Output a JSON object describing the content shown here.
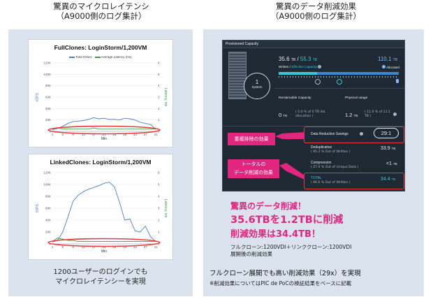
{
  "left": {
    "title_line1": "驚異のマイクロレイテンシ",
    "title_line2": "（A9000側のログ集計）",
    "chart1_title": "FullClones: LoginStorm/1,200VM",
    "chart2_title": "LinkedClones: LoginStorm/1,200VM",
    "legend_total": "Total IO/sec",
    "legend_latency": "Average Latency (ms)",
    "caption_line1": "1200ユーザーのログインでも",
    "caption_line2": "マイクロレイテンシーを実現"
  },
  "right": {
    "title_line1": "驚異のデータ削減効果",
    "title_line2": "（A9000側のログ集計）",
    "dashboard": {
      "header": "Provisioned Capacity",
      "system_count": "1",
      "system_label": "System",
      "written_value": "35.6",
      "written_unit": "TB",
      "slash": "/",
      "effective_value": "55.3",
      "effective_unit": "TB",
      "written_label": "Written",
      "effective_label": "Effective Capacity",
      "allocated_value": "110.1",
      "allocated_unit": "TB",
      "allocated_label": "Allocated",
      "reclaimable_label": "Reclaimable Capacity",
      "reclaimable_value": "0",
      "reclaimable_unit": "TB",
      "reclaimable_note1": "( 0.0 % of 0 TB Vol.",
      "reclaimable_note2": "allocation )",
      "physical_label": "Physical usage",
      "physical_value": "1.2",
      "physical_unit": "TB",
      "physical_note1": "( 11.0 % of 11.1",
      "physical_note2": "TB )",
      "savings_label": "Data Reduction Savings",
      "savings_ratio": "29:1",
      "dedup_label": "Deduplication",
      "dedup_note": "( 95.3 % Out of Written )",
      "dedup_value": "33.9",
      "dedup_unit": "TB",
      "comp_label": "Compression",
      "comp_note": "( 27.4 % Out of Unique Data )",
      "comp_value": "<1",
      "comp_unit": "TB",
      "total_label": "TOTAL",
      "total_note": "( 96.6 % Out of Written )",
      "total_value": "34.4",
      "total_unit": "TB"
    },
    "box1": "重複排除の効果",
    "box2_line1": "トータルの",
    "box2_line2": "データ削減の効果",
    "headline1": "驚異のデータ削減！",
    "headline2": "35.6TBを1.2TBに削減",
    "headline3": "削減効果は34.4TB！",
    "sub1": "フルクローン:1200VDI＋リンククローン:1200VDI",
    "sub2": "展開後の削減効果",
    "caption": "フルクローン展開でも高い削減効果（29x）を実現",
    "footnote": "※削減効果についてはPIC de PoCの検証結果をベースに記載"
  },
  "charts": {
    "x_ticks": [
      "1",
      "5",
      "9",
      "13",
      "17",
      "21",
      "25",
      "29",
      "33",
      "37",
      "41"
    ],
    "x_label": "Min",
    "y_left_label": "IOPS",
    "y_right_label": "Latency, ms",
    "y_left_ticks": [
      "0",
      "20K",
      "40K",
      "60K",
      "80K",
      "100K",
      "120K"
    ],
    "y_right_ticks": [
      "0",
      "1",
      "2",
      "3",
      "4",
      "5",
      "6"
    ]
  },
  "chart_data": [
    {
      "type": "line",
      "title": "FullClones: LoginStorm/1,200VM",
      "xlabel": "Min",
      "ylabel": "IOPS",
      "y2label": "Latency, ms",
      "ylim": [
        0,
        120000
      ],
      "y2lim": [
        0,
        6
      ],
      "x": [
        1,
        3,
        5,
        7,
        9,
        11,
        13,
        15,
        17,
        19,
        21,
        23,
        25,
        27,
        29,
        31,
        33,
        35,
        37,
        39,
        41
      ],
      "series": [
        {
          "name": "Total IO/sec",
          "axis": "left",
          "color": "#4a7fc8",
          "values": [
            3000,
            5000,
            9000,
            14000,
            17000,
            18000,
            19000,
            21000,
            24000,
            22000,
            23000,
            21000,
            21000,
            20000,
            23000,
            22000,
            20000,
            16000,
            14000,
            12000,
            4000
          ]
        },
        {
          "name": "Average Latency (ms)",
          "axis": "right",
          "color": "#3a9a4a",
          "values": [
            0.2,
            0.3,
            0.2,
            0.2,
            0.2,
            0.2,
            0.2,
            0.2,
            0.3,
            0.2,
            0.2,
            0.2,
            0.2,
            0.2,
            0.2,
            0.2,
            0.2,
            0.2,
            0.2,
            0.2,
            0.2
          ]
        }
      ]
    },
    {
      "type": "line",
      "title": "LinkedClones: LoginStorm/1,200VM",
      "xlabel": "Min",
      "ylabel": "IOPS",
      "y2label": "Latency, ms",
      "ylim": [
        0,
        120000
      ],
      "y2lim": [
        0,
        6
      ],
      "x": [
        1,
        3,
        5,
        7,
        9,
        11,
        13,
        15,
        17,
        19,
        21,
        23,
        25,
        27,
        29,
        31,
        33,
        35,
        37,
        39,
        41
      ],
      "series": [
        {
          "name": "Total IO/sec",
          "axis": "left",
          "color": "#4a7fc8",
          "values": [
            3000,
            6000,
            20000,
            45000,
            72000,
            82000,
            88000,
            92000,
            95000,
            98000,
            102000,
            104000,
            96000,
            70000,
            40000,
            42000,
            22000,
            20000,
            30000,
            12000,
            4000
          ]
        },
        {
          "name": "Average Latency (ms)",
          "axis": "right",
          "color": "#3a9a4a",
          "values": [
            0.2,
            0.5,
            0.4,
            0.3,
            0.3,
            0.2,
            0.2,
            0.2,
            0.2,
            0.2,
            0.2,
            0.2,
            0.2,
            0.2,
            0.2,
            0.2,
            0.2,
            0.2,
            0.2,
            0.2,
            0.2
          ]
        }
      ]
    }
  ],
  "colors": {
    "accent_magenta": "#e0267e",
    "ellipse_red": "#e53b3b",
    "iops_blue": "#4a7fc8",
    "latency_green": "#3a9a4a",
    "dash_bg": "#1f2933"
  }
}
